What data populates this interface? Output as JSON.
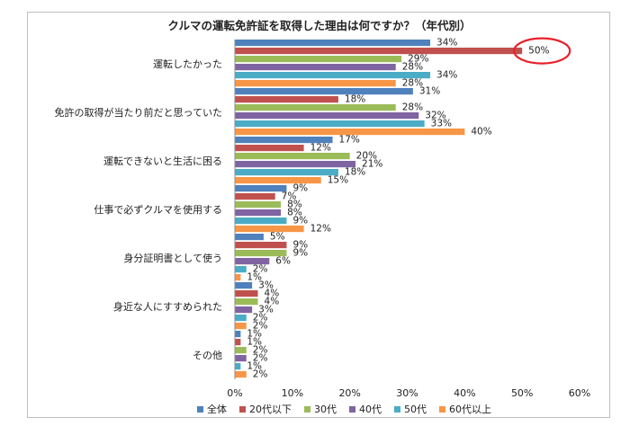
{
  "chart_data": {
    "type": "bar",
    "orientation": "horizontal",
    "title": "クルマの運転免許証を取得した理由は何ですか？（年代別）",
    "categories": [
      "運転したかった",
      "免許の取得が当たり前だと思っていた",
      "運転できないと生活に困る",
      "仕事で必ずクルマを使用する",
      "身分証明書として使う",
      "身近な人にすすめられた",
      "その他"
    ],
    "series": [
      {
        "name": "全体",
        "color": "#4f81bd",
        "values": [
          34,
          31,
          17,
          9,
          5,
          3,
          1
        ]
      },
      {
        "name": "20代以下",
        "color": "#c0504d",
        "values": [
          50,
          18,
          12,
          7,
          9,
          4,
          1
        ]
      },
      {
        "name": "30代",
        "color": "#9bbb59",
        "values": [
          29,
          28,
          20,
          8,
          9,
          4,
          2
        ]
      },
      {
        "name": "40代",
        "color": "#8064a2",
        "values": [
          28,
          32,
          21,
          8,
          6,
          3,
          2
        ]
      },
      {
        "name": "50代",
        "color": "#4bacc6",
        "values": [
          34,
          33,
          18,
          9,
          2,
          2,
          1
        ]
      },
      {
        "name": "60代以上",
        "color": "#f79646",
        "values": [
          28,
          40,
          15,
          12,
          1,
          2,
          2
        ]
      }
    ],
    "x_ticks": [
      "0%",
      "10%",
      "20%",
      "30%",
      "40%",
      "50%",
      "60%"
    ],
    "xlim": [
      0,
      60
    ],
    "value_suffix": "%",
    "legend_position": "bottom",
    "grid": false,
    "highlight": {
      "category_index": 0,
      "series_index": 1,
      "color": "#e8202a"
    }
  }
}
